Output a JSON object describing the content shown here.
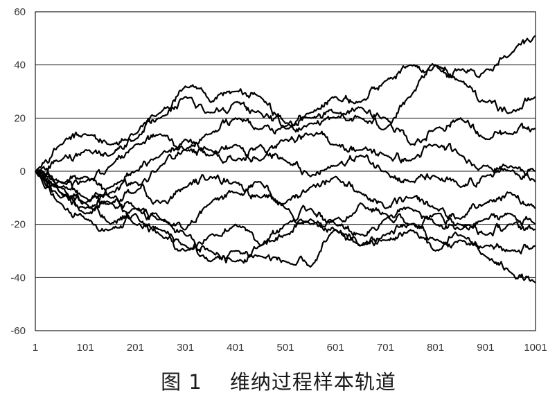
{
  "caption": {
    "figure_label": "图 1",
    "title": "维纳过程样本轨道"
  },
  "chart_data": {
    "type": "line",
    "title": "",
    "xlabel": "",
    "ylabel": "",
    "xlim": [
      1,
      1001
    ],
    "ylim": [
      -60,
      60
    ],
    "x_ticks": [
      1,
      101,
      201,
      301,
      401,
      501,
      601,
      701,
      801,
      901,
      1001
    ],
    "y_ticks": [
      60,
      40,
      20,
      0,
      -20,
      -40,
      -60
    ],
    "grid": "horizontal",
    "line_color": "#000000",
    "series": [
      {
        "x": [
          1,
          51,
          101,
          151,
          201,
          251,
          301,
          351,
          401,
          451,
          501,
          551,
          601,
          651,
          701,
          751,
          801,
          851,
          901,
          951,
          1001
        ],
        "values": [
          0,
          -4,
          -10,
          -12,
          -8,
          2,
          8,
          14,
          20,
          16,
          17,
          22,
          28,
          26,
          34,
          40,
          40,
          38,
          38,
          44,
          51
        ]
      },
      {
        "x": [
          1,
          51,
          101,
          151,
          201,
          251,
          301,
          351,
          401,
          451,
          501,
          551,
          601,
          651,
          701,
          751,
          801,
          851,
          901,
          951,
          1001
        ],
        "values": [
          0,
          10,
          14,
          10,
          12,
          22,
          32,
          26,
          30,
          28,
          18,
          20,
          22,
          20,
          16,
          28,
          40,
          34,
          26,
          22,
          28
        ]
      },
      {
        "x": [
          1,
          51,
          101,
          151,
          201,
          251,
          301,
          351,
          401,
          451,
          501,
          551,
          601,
          651,
          701,
          751,
          801,
          851,
          901,
          951,
          1001
        ],
        "values": [
          0,
          4,
          8,
          6,
          14,
          20,
          28,
          22,
          26,
          22,
          16,
          18,
          20,
          24,
          20,
          10,
          16,
          20,
          12,
          14,
          16
        ]
      },
      {
        "x": [
          1,
          51,
          101,
          151,
          201,
          251,
          301,
          351,
          401,
          451,
          501,
          551,
          601,
          651,
          701,
          751,
          801,
          851,
          901,
          951,
          1001
        ],
        "values": [
          0,
          -6,
          -4,
          2,
          10,
          14,
          8,
          6,
          10,
          4,
          12,
          14,
          10,
          8,
          6,
          4,
          10,
          6,
          2,
          0,
          0
        ]
      },
      {
        "x": [
          1,
          51,
          101,
          151,
          201,
          251,
          301,
          351,
          401,
          451,
          501,
          551,
          601,
          651,
          701,
          751,
          801,
          851,
          901,
          951,
          1001
        ],
        "values": [
          0,
          -8,
          -12,
          -6,
          0,
          6,
          12,
          8,
          4,
          10,
          4,
          -2,
          2,
          6,
          0,
          -4,
          -2,
          -6,
          -2,
          2,
          -4
        ]
      },
      {
        "x": [
          1,
          51,
          101,
          151,
          201,
          251,
          301,
          351,
          401,
          451,
          501,
          551,
          601,
          651,
          701,
          751,
          801,
          851,
          901,
          951,
          1001
        ],
        "values": [
          0,
          -10,
          -14,
          -8,
          -4,
          -12,
          -6,
          -2,
          -4,
          -10,
          -12,
          -6,
          -2,
          -8,
          -14,
          -10,
          -14,
          -18,
          -12,
          -8,
          -14
        ]
      },
      {
        "x": [
          1,
          51,
          101,
          151,
          201,
          251,
          301,
          351,
          401,
          451,
          501,
          551,
          601,
          651,
          701,
          751,
          801,
          851,
          901,
          951,
          1001
        ],
        "values": [
          0,
          -6,
          -12,
          -20,
          -14,
          -18,
          -22,
          -12,
          -8,
          -4,
          -14,
          -20,
          -18,
          -12,
          -16,
          -20,
          -16,
          -20,
          -24,
          -20,
          -22
        ]
      },
      {
        "x": [
          1,
          51,
          101,
          151,
          201,
          251,
          301,
          351,
          401,
          451,
          501,
          551,
          601,
          651,
          701,
          751,
          801,
          851,
          901,
          951,
          1001
        ],
        "values": [
          0,
          -12,
          -18,
          -22,
          -16,
          -24,
          -30,
          -24,
          -20,
          -28,
          -24,
          -18,
          -22,
          -28,
          -24,
          -20,
          -26,
          -24,
          -28,
          -30,
          -28
        ]
      },
      {
        "x": [
          1,
          51,
          101,
          151,
          201,
          251,
          301,
          351,
          401,
          451,
          501,
          551,
          601,
          651,
          701,
          751,
          801,
          851,
          901,
          951,
          1001
        ],
        "values": [
          0,
          -8,
          -16,
          -12,
          -20,
          -22,
          -28,
          -34,
          -30,
          -32,
          -34,
          -36,
          -22,
          -28,
          -26,
          -22,
          -30,
          -26,
          -32,
          -38,
          -42
        ]
      },
      {
        "x": [
          1,
          51,
          101,
          151,
          201,
          251,
          301,
          351,
          401,
          451,
          501,
          551,
          601,
          651,
          701,
          751,
          801,
          851,
          901,
          951,
          1001
        ],
        "values": [
          0,
          -4,
          -2,
          -10,
          -14,
          -18,
          -24,
          -30,
          -34,
          -28,
          -20,
          -14,
          -20,
          -24,
          -18,
          -14,
          -20,
          -22,
          -18,
          -16,
          -20
        ]
      }
    ]
  }
}
